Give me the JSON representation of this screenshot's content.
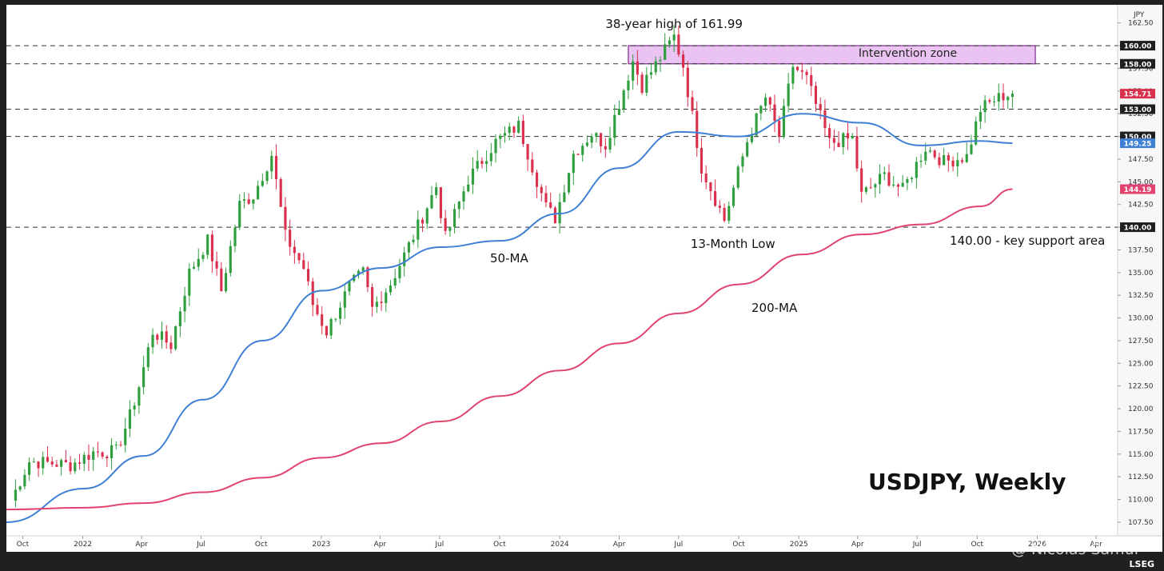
{
  "chart_data": {
    "type": "candlestick",
    "title": "USDJPY, Weekly",
    "currency_label": "JPY",
    "ylim": [
      106.0,
      164.5
    ],
    "y_ticks": [
      "107.50",
      "110.00",
      "112.50",
      "115.00",
      "117.50",
      "120.00",
      "122.50",
      "125.00",
      "127.50",
      "130.00",
      "132.50",
      "135.00",
      "137.50",
      "140.00",
      "142.50",
      "145.00",
      "147.50",
      "150.00",
      "152.50",
      "155.00",
      "157.50",
      "160.00",
      "162.50"
    ],
    "x_ticks": [
      {
        "label": "Oct",
        "date": "2021-10-01"
      },
      {
        "label": "2022",
        "date": "2022-01-01"
      },
      {
        "label": "Apr",
        "date": "2022-04-01"
      },
      {
        "label": "Jul",
        "date": "2022-07-01"
      },
      {
        "label": "Oct",
        "date": "2022-10-01"
      },
      {
        "label": "2023",
        "date": "2023-01-01"
      },
      {
        "label": "Apr",
        "date": "2023-04-01"
      },
      {
        "label": "Jul",
        "date": "2023-07-01"
      },
      {
        "label": "Oct",
        "date": "2023-10-01"
      },
      {
        "label": "2024",
        "date": "2024-01-01"
      },
      {
        "label": "Apr",
        "date": "2024-04-01"
      },
      {
        "label": "Jul",
        "date": "2024-07-01"
      },
      {
        "label": "Oct",
        "date": "2024-10-01"
      },
      {
        "label": "2025",
        "date": "2025-01-01"
      },
      {
        "label": "Apr",
        "date": "2025-04-01"
      },
      {
        "label": "Jul",
        "date": "2025-07-01"
      },
      {
        "label": "Oct",
        "date": "2025-10-01"
      },
      {
        "label": "2026",
        "date": "2026-01-01"
      },
      {
        "label": "Apr",
        "date": "2026-04-01"
      }
    ],
    "xlim": [
      "2021-09-06",
      "2026-05-04"
    ],
    "series": [
      {
        "name": "USDJPY",
        "weekly_close": [
          {
            "date": "2021-09-13",
            "value": 109.9
          },
          {
            "date": "2021-10-11",
            "value": 114.2
          },
          {
            "date": "2021-11-15",
            "value": 114.0
          },
          {
            "date": "2021-12-13",
            "value": 113.8
          },
          {
            "date": "2022-01-17",
            "value": 115.2
          },
          {
            "date": "2022-02-21",
            "value": 115.3
          },
          {
            "date": "2022-03-14",
            "value": 119.2
          },
          {
            "date": "2022-03-28",
            "value": 122.5
          },
          {
            "date": "2022-04-18",
            "value": 128.5
          },
          {
            "date": "2022-05-16",
            "value": 127.0
          },
          {
            "date": "2022-06-13",
            "value": 135.0
          },
          {
            "date": "2022-07-11",
            "value": 138.5
          },
          {
            "date": "2022-08-01",
            "value": 133.0
          },
          {
            "date": "2022-08-29",
            "value": 142.5
          },
          {
            "date": "2022-09-19",
            "value": 143.5
          },
          {
            "date": "2022-10-17",
            "value": 148.0
          },
          {
            "date": "2022-11-07",
            "value": 139.0
          },
          {
            "date": "2022-12-05",
            "value": 135.5
          },
          {
            "date": "2022-12-19",
            "value": 131.5
          },
          {
            "date": "2023-01-09",
            "value": 128.5
          },
          {
            "date": "2023-02-13",
            "value": 133.5
          },
          {
            "date": "2023-03-06",
            "value": 135.0
          },
          {
            "date": "2023-03-20",
            "value": 131.0
          },
          {
            "date": "2023-04-17",
            "value": 133.8
          },
          {
            "date": "2023-05-22",
            "value": 139.0
          },
          {
            "date": "2023-06-26",
            "value": 144.5
          },
          {
            "date": "2023-07-10",
            "value": 138.8
          },
          {
            "date": "2023-08-14",
            "value": 145.3
          },
          {
            "date": "2023-09-25",
            "value": 149.4
          },
          {
            "date": "2023-10-30",
            "value": 151.2
          },
          {
            "date": "2023-12-11",
            "value": 142.2
          },
          {
            "date": "2023-12-25",
            "value": 141.0
          },
          {
            "date": "2024-01-22",
            "value": 148.1
          },
          {
            "date": "2024-02-19",
            "value": 150.3
          },
          {
            "date": "2024-03-11",
            "value": 149.1
          },
          {
            "date": "2024-04-22",
            "value": 158.3
          },
          {
            "date": "2024-05-06",
            "value": 155.6
          },
          {
            "date": "2024-06-24",
            "value": 161.0
          },
          {
            "date": "2024-07-08",
            "value": 157.8
          },
          {
            "date": "2024-08-05",
            "value": 146.6
          },
          {
            "date": "2024-09-09",
            "value": 140.8
          },
          {
            "date": "2024-10-14",
            "value": 149.5
          },
          {
            "date": "2024-11-11",
            "value": 154.3
          },
          {
            "date": "2024-12-02",
            "value": 150.0
          },
          {
            "date": "2024-12-23",
            "value": 157.8
          },
          {
            "date": "2025-01-13",
            "value": 156.3
          },
          {
            "date": "2025-02-17",
            "value": 149.3
          },
          {
            "date": "2025-03-24",
            "value": 149.8
          },
          {
            "date": "2025-04-07",
            "value": 143.5
          },
          {
            "date": "2025-05-12",
            "value": 145.7
          },
          {
            "date": "2025-06-09",
            "value": 144.1
          },
          {
            "date": "2025-07-14",
            "value": 148.8
          },
          {
            "date": "2025-08-11",
            "value": 147.2
          },
          {
            "date": "2025-09-15",
            "value": 147.8
          },
          {
            "date": "2025-10-06",
            "value": 153.0
          },
          {
            "date": "2025-10-27",
            "value": 154.0
          },
          {
            "date": "2025-11-10",
            "value": 154.5
          },
          {
            "date": "2025-11-24",
            "value": 154.71
          }
        ],
        "last_value": "154.71"
      },
      {
        "name": "50-MA",
        "color": "#3f7fd4",
        "values": [
          {
            "date": "2021-09-06",
            "value": 107.5
          },
          {
            "date": "2022-01-03",
            "value": 111.2
          },
          {
            "date": "2022-04-04",
            "value": 114.8
          },
          {
            "date": "2022-07-04",
            "value": 121.0
          },
          {
            "date": "2022-10-03",
            "value": 127.5
          },
          {
            "date": "2023-01-02",
            "value": 133.0
          },
          {
            "date": "2023-04-03",
            "value": 135.5
          },
          {
            "date": "2023-07-03",
            "value": 137.8
          },
          {
            "date": "2023-10-02",
            "value": 138.5
          },
          {
            "date": "2024-01-01",
            "value": 141.5
          },
          {
            "date": "2024-04-01",
            "value": 146.5
          },
          {
            "date": "2024-07-01",
            "value": 150.5
          },
          {
            "date": "2024-10-01",
            "value": 150.0
          },
          {
            "date": "2025-01-06",
            "value": 152.5
          },
          {
            "date": "2025-04-07",
            "value": 151.5
          },
          {
            "date": "2025-07-07",
            "value": 149.0
          },
          {
            "date": "2025-10-06",
            "value": 149.5
          },
          {
            "date": "2025-11-24",
            "value": 149.25
          }
        ],
        "last_value": "149.25"
      },
      {
        "name": "200-MA",
        "color": "#e0446f",
        "values": [
          {
            "date": "2021-09-06",
            "value": 108.9
          },
          {
            "date": "2022-01-03",
            "value": 109.1
          },
          {
            "date": "2022-04-04",
            "value": 109.6
          },
          {
            "date": "2022-07-04",
            "value": 110.8
          },
          {
            "date": "2022-10-03",
            "value": 112.4
          },
          {
            "date": "2023-01-02",
            "value": 114.6
          },
          {
            "date": "2023-04-03",
            "value": 116.2
          },
          {
            "date": "2023-07-03",
            "value": 118.6
          },
          {
            "date": "2023-10-02",
            "value": 121.4
          },
          {
            "date": "2024-01-01",
            "value": 124.2
          },
          {
            "date": "2024-04-01",
            "value": 127.2
          },
          {
            "date": "2024-07-01",
            "value": 130.5
          },
          {
            "date": "2024-10-01",
            "value": 133.7
          },
          {
            "date": "2025-01-06",
            "value": 137.0
          },
          {
            "date": "2025-04-07",
            "value": 139.2
          },
          {
            "date": "2025-07-07",
            "value": 140.3
          },
          {
            "date": "2025-10-06",
            "value": 142.3
          },
          {
            "date": "2025-11-24",
            "value": 144.19
          }
        ],
        "last_value": "144.19"
      }
    ],
    "horizontal_levels": [
      {
        "value": 160.0,
        "label": "160.00"
      },
      {
        "value": 158.0,
        "label": "158.00"
      },
      {
        "value": 153.0,
        "label": "153.00"
      },
      {
        "value": 150.0,
        "label": "150.00"
      },
      {
        "value": 140.0,
        "label": "140.00"
      }
    ],
    "zone": {
      "label": "Intervention zone",
      "from": 158.0,
      "to": 160.0,
      "start": "2024-04-15",
      "end": "2025-12-29",
      "color": "#e6b8f0"
    },
    "annotations": {
      "high": "38-year high of 161.99",
      "low": "13-Month Low",
      "support": "140.00 - key support area",
      "ma50": "50-MA",
      "ma200": "200-MA"
    },
    "colors": {
      "up": "#2f9e3e",
      "down": "#d9304d",
      "ma50": "#3f7fd4",
      "ma200": "#e0446f",
      "zone_border": "#7b2a8c"
    }
  },
  "footer": {
    "brand": "LSEG",
    "watermark": "@ Nicolas Samui"
  }
}
